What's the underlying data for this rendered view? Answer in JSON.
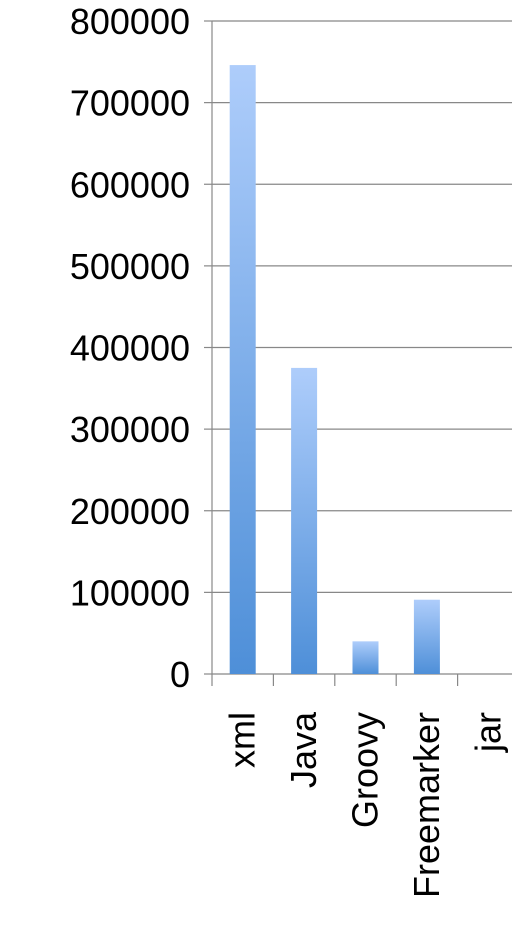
{
  "chart_data": {
    "type": "bar",
    "categories": [
      "xml",
      "Java",
      "Groovy",
      "Freemarker",
      "jar"
    ],
    "values": [
      746000,
      375000,
      40000,
      91000,
      0
    ],
    "ylim": [
      0,
      800000
    ],
    "yticks": [
      "0",
      "100000",
      "200000",
      "300000",
      "400000",
      "500000",
      "600000",
      "700000",
      "800000"
    ],
    "grid": true,
    "legend": "none",
    "title": "",
    "xlabel": "",
    "ylabel": "",
    "colors": {
      "bar_top": "#aecdfb",
      "bar_bottom": "#4e8fd8",
      "grid": "#888888",
      "axis": "#888888",
      "text": "#000000"
    }
  }
}
